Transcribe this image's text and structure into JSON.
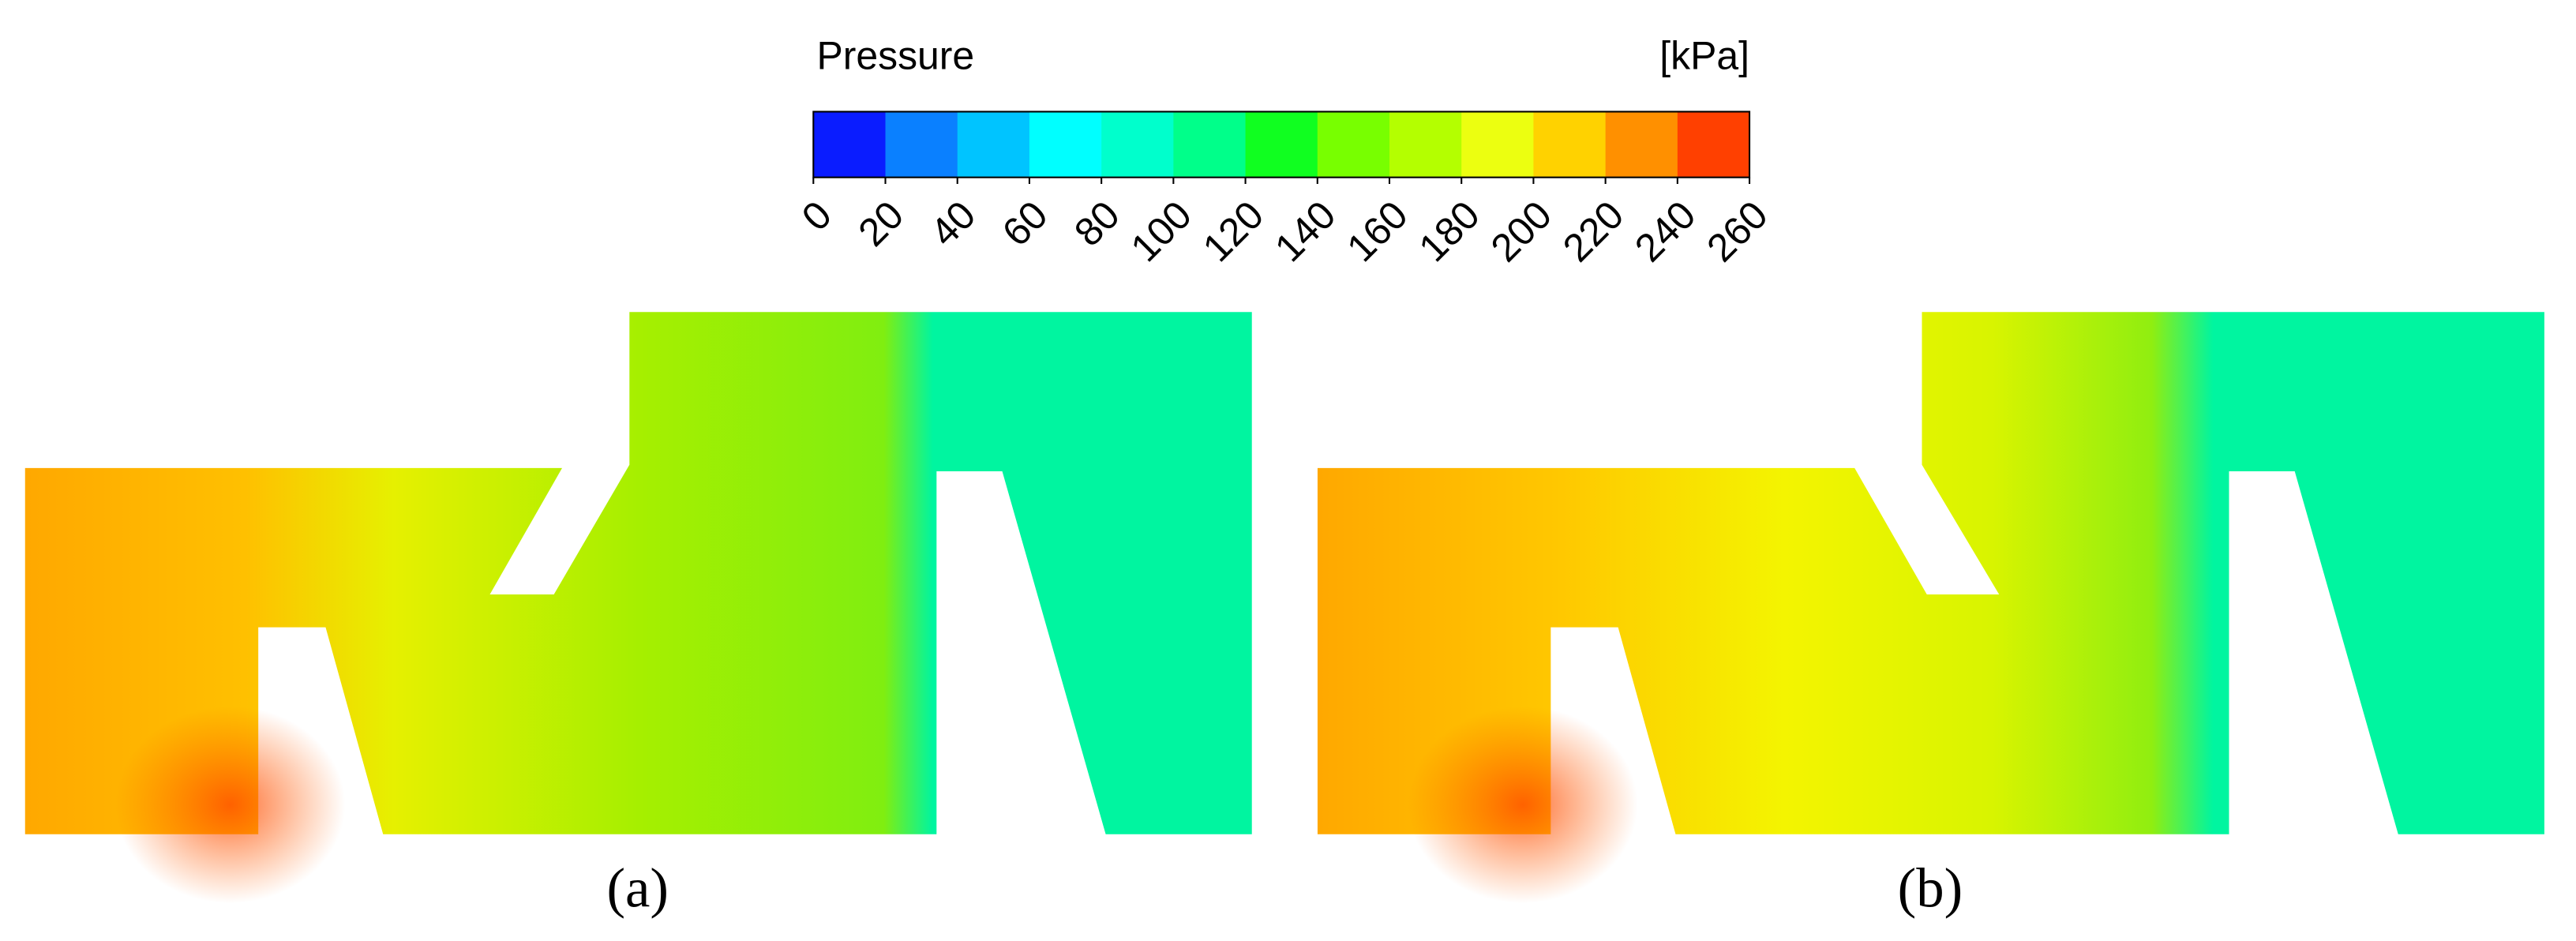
{
  "colorbar": {
    "title": "Pressure",
    "unit": "[kPa]",
    "ticks": [
      0,
      20,
      40,
      60,
      80,
      100,
      120,
      140,
      160,
      180,
      200,
      220,
      240,
      260
    ],
    "colors": [
      "#0a1cff",
      "#0a80ff",
      "#00c4ff",
      "#00ffff",
      "#00ffcc",
      "#00ff8a",
      "#10ff20",
      "#78ff00",
      "#b4ff00",
      "#ecff10",
      "#ffd200",
      "#ff9000",
      "#ff4000"
    ]
  },
  "panels": [
    {
      "label": "(a)"
    },
    {
      "label": "(b)"
    }
  ]
}
